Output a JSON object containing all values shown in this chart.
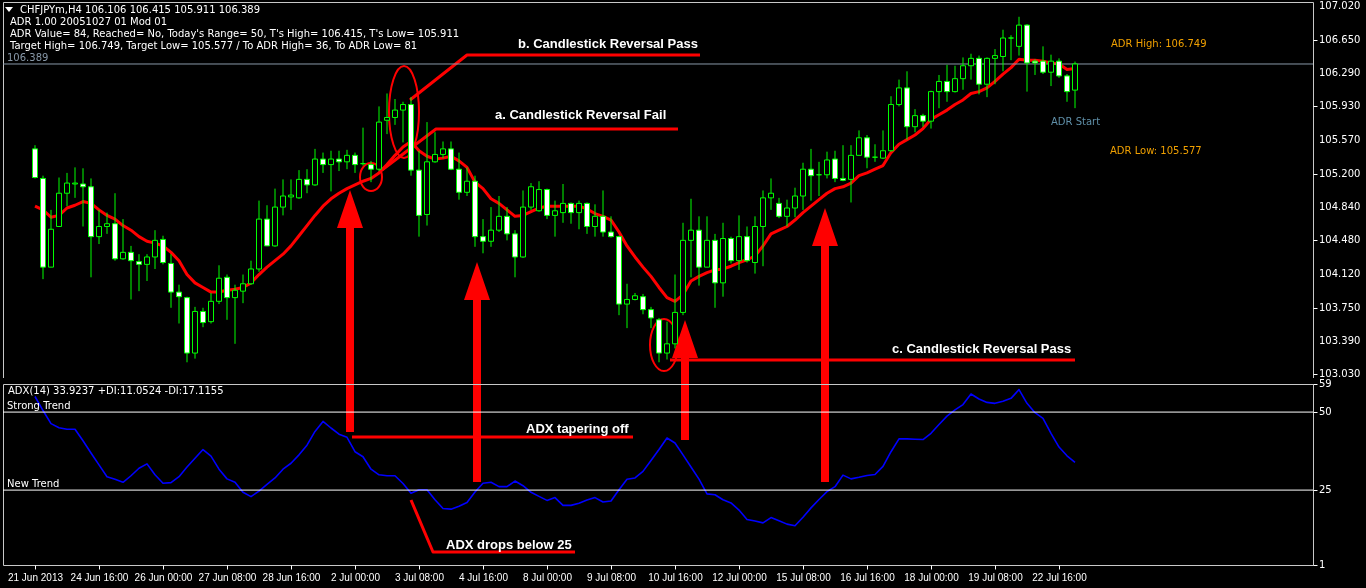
{
  "chart_data": [
    {
      "type": "candlestick",
      "title": "CHFJPYm,H4  106.106 106.415 105.911 106.389",
      "color": "#00ff00",
      "annotations": [
        "ADR 1.00 20051027 01 Mod 01",
        "ADR Value= 84, Reached= No, Today's Range= 50, T's High= 106.415, T's Low= 105.911",
        "Target High= 106.749, Target Low= 105.577 / To ADR High= 36, To ADR Low= 81",
        "b. Candlestick Reversal Pass",
        "a. Candlestick Reversal Fail",
        "ADR High: 106.749",
        "ADR Start",
        "ADR Low: 105.577",
        "c. Candlestick Reversal Pass"
      ],
      "categories": [
        null,
        null,
        null,
        null,
        null,
        null,
        null,
        null,
        null,
        null,
        null,
        null,
        null,
        null,
        null,
        null,
        null,
        null,
        null,
        null,
        null,
        null,
        null,
        null,
        null,
        null,
        null,
        null,
        null,
        null,
        null,
        null,
        null,
        null,
        null,
        null,
        null,
        null,
        null,
        null,
        null,
        null,
        null,
        null,
        null,
        null,
        null,
        null,
        null,
        null,
        null,
        null,
        null,
        null,
        null,
        null,
        null,
        null,
        null,
        null,
        null,
        null,
        null,
        null,
        null,
        null,
        null,
        null,
        null,
        null,
        null,
        null,
        null,
        null,
        null,
        null,
        null,
        null,
        null,
        null,
        null,
        null,
        null,
        null,
        null,
        null,
        null,
        null,
        null,
        null,
        null,
        null,
        null,
        null,
        null,
        null,
        null,
        null,
        null,
        null,
        null,
        null,
        null,
        null,
        null,
        null,
        null,
        null,
        null,
        null,
        null,
        null,
        null,
        null,
        null,
        null,
        null,
        null,
        null,
        null,
        null,
        null,
        null,
        null,
        null,
        null,
        null,
        null,
        null,
        null,
        null
      ],
      "ohlc": [
        [
          105.47,
          105.51,
          105.15,
          105.16
        ],
        [
          105.15,
          105.18,
          104.06,
          104.19
        ],
        [
          104.19,
          104.81,
          104.19,
          104.6
        ],
        [
          104.63,
          105.16,
          104.63,
          104.99
        ],
        [
          104.99,
          105.21,
          104.85,
          105.1
        ],
        [
          105.09,
          105.27,
          104.94,
          105.1
        ],
        [
          105.09,
          105.26,
          104.63,
          105.06
        ],
        [
          105.06,
          105.15,
          104.08,
          104.52
        ],
        [
          104.52,
          104.81,
          104.44,
          104.63
        ],
        [
          104.63,
          104.78,
          104.55,
          104.66
        ],
        [
          104.66,
          104.99,
          104.26,
          104.28
        ],
        [
          104.28,
          104.71,
          104.27,
          104.35
        ],
        [
          104.35,
          104.42,
          103.84,
          104.26
        ],
        [
          104.25,
          104.33,
          103.93,
          104.22
        ],
        [
          104.22,
          104.33,
          104.04,
          104.3
        ],
        [
          104.3,
          104.59,
          104.17,
          104.48
        ],
        [
          104.49,
          104.53,
          104.22,
          104.24
        ],
        [
          104.23,
          104.33,
          103.75,
          103.92
        ],
        [
          103.92,
          104.0,
          103.58,
          103.87
        ],
        [
          103.86,
          103.87,
          103.16,
          103.26
        ],
        [
          103.26,
          103.76,
          103.2,
          103.71
        ],
        [
          103.71,
          103.75,
          103.54,
          103.59
        ],
        [
          103.6,
          103.91,
          103.58,
          103.82
        ],
        [
          103.82,
          104.21,
          103.79,
          104.07
        ],
        [
          104.08,
          104.11,
          103.62,
          103.86
        ],
        [
          103.86,
          104.0,
          103.36,
          103.94
        ],
        [
          103.93,
          104.11,
          103.8,
          104.01
        ],
        [
          104.01,
          104.26,
          104.0,
          104.17
        ],
        [
          104.17,
          104.91,
          104.14,
          104.71
        ],
        [
          104.71,
          104.86,
          104.42,
          104.42
        ],
        [
          104.42,
          105.04,
          104.41,
          104.84
        ],
        [
          104.84,
          105.14,
          104.75,
          104.96
        ],
        [
          104.95,
          105.14,
          104.81,
          104.97
        ],
        [
          104.94,
          105.24,
          104.93,
          105.14
        ],
        [
          105.14,
          105.25,
          104.99,
          105.08
        ],
        [
          105.08,
          105.47,
          105.07,
          105.36
        ],
        [
          105.36,
          105.43,
          105.21,
          105.3
        ],
        [
          105.3,
          105.45,
          105.01,
          105.36
        ],
        [
          105.36,
          105.45,
          105.23,
          105.33
        ],
        [
          105.33,
          105.46,
          105.25,
          105.4
        ],
        [
          105.4,
          105.43,
          105.21,
          105.3
        ],
        [
          105.31,
          105.7,
          105.29,
          105.31
        ],
        [
          105.3,
          105.34,
          105.11,
          105.25
        ],
        [
          105.25,
          105.93,
          105.23,
          105.76
        ],
        [
          105.78,
          106.07,
          105.63,
          105.81
        ],
        [
          105.81,
          106.01,
          105.73,
          105.89
        ],
        [
          105.89,
          105.98,
          105.54,
          105.95
        ],
        [
          105.95,
          106.03,
          105.18,
          105.24
        ],
        [
          105.24,
          105.45,
          104.52,
          104.75
        ],
        [
          104.76,
          105.76,
          104.64,
          105.33
        ],
        [
          105.33,
          105.65,
          105.32,
          105.41
        ],
        [
          105.41,
          105.55,
          105.37,
          105.47
        ],
        [
          105.47,
          105.55,
          105.24,
          105.25
        ],
        [
          105.25,
          105.43,
          104.92,
          105.0
        ],
        [
          105.0,
          105.27,
          104.96,
          105.12
        ],
        [
          105.12,
          105.18,
          104.41,
          104.52
        ],
        [
          104.52,
          104.71,
          104.34,
          104.47
        ],
        [
          104.47,
          104.84,
          104.41,
          104.59
        ],
        [
          104.59,
          104.96,
          104.57,
          104.74
        ],
        [
          104.74,
          104.84,
          104.48,
          104.55
        ],
        [
          104.55,
          104.59,
          104.08,
          104.3
        ],
        [
          104.3,
          105.02,
          104.29,
          104.84
        ],
        [
          104.84,
          105.1,
          104.81,
          105.06
        ],
        [
          104.8,
          105.12,
          104.79,
          105.03
        ],
        [
          105.03,
          105.04,
          104.71,
          104.75
        ],
        [
          104.75,
          104.91,
          104.52,
          104.8
        ],
        [
          104.78,
          105.09,
          104.67,
          104.88
        ],
        [
          104.88,
          104.89,
          104.66,
          104.78
        ],
        [
          104.78,
          104.91,
          104.6,
          104.88
        ],
        [
          104.88,
          104.89,
          104.55,
          104.63
        ],
        [
          104.63,
          104.87,
          104.52,
          104.74
        ],
        [
          104.74,
          105.02,
          104.52,
          104.57
        ],
        [
          104.57,
          104.74,
          104.51,
          104.52
        ],
        [
          104.52,
          104.53,
          103.67,
          103.79
        ],
        [
          103.79,
          104.01,
          103.53,
          103.84
        ],
        [
          103.84,
          103.91,
          103.83,
          103.88
        ],
        [
          103.87,
          103.9,
          103.68,
          103.73
        ],
        [
          103.73,
          103.76,
          103.53,
          103.64
        ],
        [
          103.62,
          103.64,
          103.16,
          103.26
        ],
        [
          103.26,
          103.6,
          103.19,
          103.36
        ],
        [
          103.36,
          104.11,
          103.31,
          103.7
        ],
        [
          103.7,
          104.67,
          103.67,
          104.48
        ],
        [
          104.48,
          104.93,
          104.08,
          104.59
        ],
        [
          104.59,
          104.74,
          103.99,
          104.19
        ],
        [
          104.19,
          104.74,
          104.19,
          104.48
        ],
        [
          104.48,
          104.55,
          103.75,
          104.02
        ],
        [
          104.02,
          104.67,
          103.87,
          104.5
        ],
        [
          104.5,
          104.52,
          104.23,
          104.26
        ],
        [
          104.26,
          104.75,
          104.16,
          104.52
        ],
        [
          104.52,
          104.63,
          104.24,
          104.26
        ],
        [
          104.24,
          104.74,
          104.12,
          104.63
        ],
        [
          104.63,
          105.02,
          104.2,
          104.94
        ],
        [
          104.94,
          105.15,
          104.81,
          104.99
        ],
        [
          104.88,
          104.94,
          104.72,
          104.74
        ],
        [
          104.74,
          104.92,
          104.63,
          104.83
        ],
        [
          104.83,
          105.05,
          104.73,
          104.96
        ],
        [
          104.96,
          105.32,
          104.81,
          105.25
        ],
        [
          105.25,
          105.47,
          104.91,
          105.18
        ],
        [
          105.19,
          105.33,
          104.96,
          105.19
        ],
        [
          105.19,
          105.44,
          105.15,
          105.35
        ],
        [
          105.36,
          105.45,
          105.11,
          105.15
        ],
        [
          105.15,
          105.51,
          105.12,
          105.13
        ],
        [
          105.14,
          105.51,
          104.89,
          105.4
        ],
        [
          105.4,
          105.67,
          105.4,
          105.59
        ],
        [
          105.59,
          105.62,
          105.26,
          105.38
        ],
        [
          105.38,
          105.52,
          105.33,
          105.38
        ],
        [
          105.37,
          105.67,
          105.36,
          105.45
        ],
        [
          105.45,
          106.04,
          105.44,
          105.95
        ],
        [
          105.95,
          106.22,
          105.93,
          106.13
        ],
        [
          106.13,
          106.31,
          105.57,
          105.71
        ],
        [
          105.71,
          105.9,
          105.65,
          105.83
        ],
        [
          105.83,
          105.85,
          105.71,
          105.77
        ],
        [
          105.77,
          106.1,
          105.69,
          106.09
        ],
        [
          106.09,
          106.27,
          105.91,
          106.2
        ],
        [
          106.2,
          106.38,
          105.98,
          106.09
        ],
        [
          106.09,
          106.37,
          106.08,
          106.23
        ],
        [
          106.23,
          106.46,
          106.11,
          106.37
        ],
        [
          106.37,
          106.5,
          106.22,
          106.45
        ],
        [
          106.45,
          106.48,
          106.06,
          106.17
        ],
        [
          106.17,
          106.46,
          106.03,
          106.45
        ],
        [
          106.45,
          106.55,
          106.17,
          106.48
        ],
        [
          106.47,
          106.76,
          106.31,
          106.67
        ],
        [
          106.67,
          106.7,
          106.43,
          106.67
        ],
        [
          106.58,
          106.9,
          106.48,
          106.81
        ],
        [
          106.81,
          106.82,
          106.09,
          106.4
        ],
        [
          106.42,
          106.44,
          106.27,
          106.4
        ],
        [
          106.42,
          106.58,
          106.28,
          106.3
        ],
        [
          106.3,
          106.49,
          106.15,
          106.42
        ],
        [
          106.42,
          106.45,
          106.24,
          106.26
        ],
        [
          106.26,
          106.28,
          105.98,
          106.09
        ],
        [
          106.106,
          106.415,
          105.911,
          106.389
        ]
      ],
      "series": [
        {
          "type": "line",
          "color": "#ff0000",
          "values": [
            104.85,
            104.81,
            104.73,
            104.75,
            104.83,
            104.86,
            104.9,
            104.88,
            104.81,
            104.75,
            104.71,
            104.64,
            104.59,
            104.52,
            104.47,
            104.45,
            104.42,
            104.35,
            104.26,
            104.11,
            104.02,
            103.97,
            103.92,
            103.92,
            103.94,
            103.95,
            103.97,
            104.02,
            104.11,
            104.19,
            104.26,
            104.33,
            104.42,
            104.53,
            104.64,
            104.75,
            104.85,
            104.93,
            104.99,
            105.04,
            105.08,
            105.12,
            105.15,
            105.21,
            105.3,
            105.4,
            105.49,
            105.55,
            105.45,
            105.39,
            105.36,
            105.37,
            105.39,
            105.34,
            105.27,
            105.11,
            105.04,
            104.93,
            104.88,
            104.81,
            104.74,
            104.75,
            104.79,
            104.83,
            104.85,
            104.85,
            104.85,
            104.85,
            104.85,
            104.82,
            104.77,
            104.74,
            104.7,
            104.57,
            104.42,
            104.3,
            104.19,
            104.09,
            103.97,
            103.86,
            103.82,
            103.89,
            104.04,
            104.09,
            104.13,
            104.16,
            104.17,
            104.2,
            104.24,
            104.27,
            104.31,
            104.42,
            104.55,
            104.59,
            104.63,
            104.7,
            104.78,
            104.85,
            104.92,
            104.99,
            105.04,
            105.06,
            105.1,
            105.18,
            105.21,
            105.25,
            105.29,
            105.43,
            105.52,
            105.57,
            105.62,
            105.69,
            105.79,
            105.84,
            105.89,
            105.95,
            106.0,
            106.07,
            106.09,
            106.13,
            106.2,
            106.28,
            106.35,
            106.44,
            106.43,
            106.43,
            106.42,
            106.4,
            106.39,
            106.33,
            106.34
          ]
        }
      ],
      "ylim": [
        102.99,
        107.06
      ],
      "yticks": [
        {
          "value": 107.02,
          "label": "107.020"
        },
        {
          "value": 106.65,
          "label": "106.650"
        },
        {
          "value": 106.29,
          "label": "106.290"
        },
        {
          "value": 105.93,
          "label": "105.930"
        },
        {
          "value": 105.57,
          "label": "105.570"
        },
        {
          "value": 105.2,
          "label": "105.200"
        },
        {
          "value": 104.84,
          "label": "104.840"
        },
        {
          "value": 104.48,
          "label": "104.480"
        },
        {
          "value": 104.12,
          "label": "104.120"
        },
        {
          "value": 103.75,
          "label": "103.750"
        },
        {
          "value": 103.39,
          "label": "103.390"
        },
        {
          "value": 103.03,
          "label": "103.030"
        }
      ],
      "ref_lines": [
        {
          "axis": "y",
          "value": 106.389,
          "label": "106.389",
          "color": "#8898a8"
        }
      ]
    },
    {
      "type": "line",
      "title": "ADX(14) 33.9237 +DI:11.0524 -DI:17.1155",
      "annotations": [
        "ADX tapering off",
        "ADX drops below 25"
      ],
      "categories": [
        "21 Jun 2013",
        null,
        null,
        null,
        null,
        null,
        null,
        null,
        "24 Jun 16:00",
        null,
        null,
        null,
        null,
        null,
        null,
        null,
        "26 Jun 00:00",
        null,
        null,
        null,
        null,
        null,
        null,
        null,
        "27 Jun 08:00",
        null,
        null,
        null,
        null,
        null,
        null,
        null,
        "28 Jun 16:00",
        null,
        null,
        null,
        null,
        null,
        null,
        null,
        "2 Jul 00:00",
        null,
        null,
        null,
        null,
        null,
        null,
        null,
        "3 Jul 08:00",
        null,
        null,
        null,
        null,
        null,
        null,
        null,
        "4 Jul 16:00",
        null,
        null,
        null,
        null,
        null,
        null,
        null,
        "8 Jul 00:00",
        null,
        null,
        null,
        null,
        null,
        null,
        null,
        "9 Jul 08:00",
        null,
        null,
        null,
        null,
        null,
        null,
        null,
        "10 Jul 16:00",
        null,
        null,
        null,
        null,
        null,
        null,
        null,
        "12 Jul 00:00",
        null,
        null,
        null,
        null,
        null,
        null,
        null,
        "15 Jul 08:00",
        null,
        null,
        null,
        null,
        null,
        null,
        null,
        "16 Jul 16:00",
        null,
        null,
        null,
        null,
        null,
        null,
        null,
        "18 Jul 00:00",
        null,
        null,
        null,
        null,
        null,
        null,
        null,
        "19 Jul 08:00",
        null,
        null,
        null,
        null,
        null,
        null,
        null,
        "22 Jul 16:00",
        null,
        null
      ],
      "series": [
        {
          "color": "#0000ff",
          "values": [
            55.0,
            50.5,
            46.3,
            45.0,
            44.5,
            44.5,
            40.8,
            36.9,
            33.1,
            29.3,
            28.5,
            27.5,
            29.6,
            32.0,
            33.4,
            29.9,
            27.2,
            27.4,
            29.3,
            32.4,
            35.2,
            38.0,
            35.9,
            31.7,
            28.6,
            27.5,
            24.3,
            22.9,
            24.7,
            26.8,
            28.9,
            31.7,
            33.6,
            36.3,
            39.4,
            43.8,
            47.0,
            44.9,
            42.9,
            41.9,
            37.3,
            35.7,
            31.7,
            29.9,
            29.6,
            29.6,
            27.1,
            24.0,
            25.1,
            25.1,
            21.9,
            19.1,
            18.9,
            19.8,
            21.0,
            24.4,
            27.2,
            27.5,
            26.1,
            26.1,
            27.9,
            26.4,
            24.3,
            23.0,
            21.7,
            22.6,
            20.1,
            20.1,
            20.8,
            21.8,
            22.6,
            21.2,
            21.5,
            25.1,
            28.5,
            28.9,
            31.0,
            34.5,
            38.0,
            41.7,
            40.1,
            36.3,
            32.4,
            28.5,
            23.8,
            23.5,
            21.9,
            20.9,
            18.6,
            15.6,
            15.1,
            14.5,
            16.2,
            15.2,
            14.1,
            13.6,
            16.3,
            19.3,
            22.0,
            24.5,
            26.1,
            29.8,
            28.6,
            29.1,
            29.7,
            30.0,
            32.6,
            37.3,
            41.4,
            41.4,
            41.3,
            41.2,
            43.2,
            46.0,
            48.7,
            50.7,
            52.4,
            55.8,
            54.2,
            53.1,
            52.8,
            53.5,
            54.4,
            57.2,
            52.8,
            49.8,
            48.0,
            43.2,
            38.8,
            36.0,
            33.9
          ]
        }
      ],
      "ylim": [
        1,
        59
      ],
      "yticks": [
        59,
        50,
        25,
        1
      ],
      "ref_lines": [
        {
          "axis": "y",
          "value": 50,
          "label": "Strong Trend",
          "color": "#ffffff"
        },
        {
          "axis": "y",
          "value": 25,
          "label": "New Trend",
          "color": "#ffffff"
        }
      ]
    }
  ]
}
